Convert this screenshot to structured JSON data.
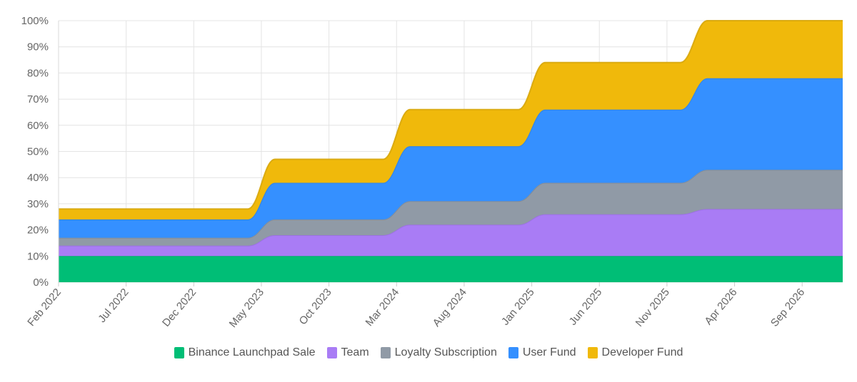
{
  "chart_data": {
    "type": "area",
    "title": "",
    "xlabel": "",
    "ylabel": "",
    "stacked": true,
    "ylim": [
      0,
      100
    ],
    "y_ticks": [
      "0%",
      "10%",
      "20%",
      "30%",
      "40%",
      "50%",
      "60%",
      "70%",
      "80%",
      "90%",
      "100%"
    ],
    "x_ticks": [
      "Feb 2022",
      "Jul 2022",
      "Dec 2022",
      "May 2023",
      "Oct 2023",
      "Mar 2024",
      "Aug 2024",
      "Jan 2025",
      "Jun 2025",
      "Nov 2025",
      "Apr 2026",
      "Sep 2026"
    ],
    "x_months_range": [
      0,
      58
    ],
    "x_months": [
      0,
      14,
      16,
      24,
      26,
      34,
      36,
      46,
      48,
      58
    ],
    "series": [
      {
        "name": "Binance Launchpad Sale",
        "color": "#00be76",
        "values": [
          10,
          10,
          10,
          10,
          10,
          10,
          10,
          10,
          10,
          10
        ]
      },
      {
        "name": "Team",
        "color": "#a97cf5",
        "values": [
          4,
          4,
          8,
          8,
          12,
          12,
          16,
          16,
          18,
          18
        ]
      },
      {
        "name": "Loyalty Subscription",
        "color": "#909aa6",
        "values": [
          3,
          3,
          6,
          6,
          9,
          9,
          12,
          12,
          15,
          15
        ]
      },
      {
        "name": "User Fund",
        "color": "#3590ff",
        "values": [
          7,
          7,
          14,
          14,
          21,
          21,
          28,
          28,
          35,
          35
        ]
      },
      {
        "name": "Developer Fund",
        "color": "#f0b90b",
        "values": [
          4,
          4,
          9,
          9,
          14,
          14,
          18,
          18,
          22,
          22
        ]
      }
    ]
  }
}
